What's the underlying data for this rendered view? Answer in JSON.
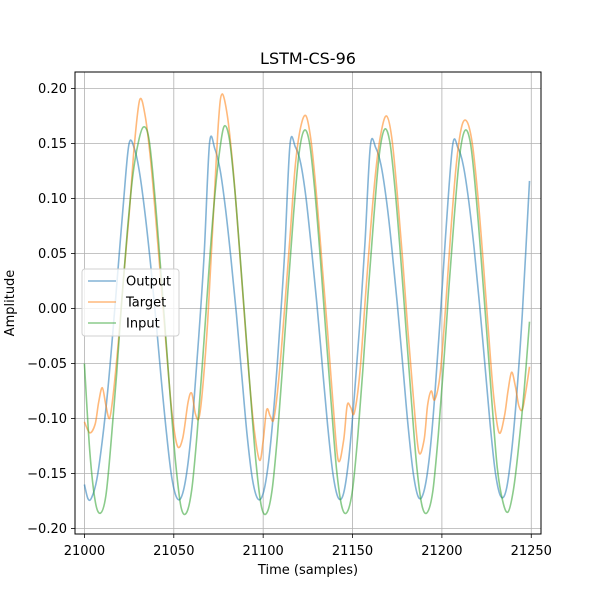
{
  "chart_data": {
    "type": "line",
    "title": "LSTM-CS-96",
    "xlabel": "Time (samples)",
    "ylabel": "Amplitude",
    "xlim": [
      21000,
      21249
    ],
    "ylim": [
      -0.205,
      0.215
    ],
    "xticks": [
      21000,
      21050,
      21100,
      21150,
      21200,
      21250
    ],
    "yticks": [
      -0.2,
      -0.15,
      -0.1,
      -0.05,
      0.0,
      0.05,
      0.1,
      0.15,
      0.2
    ],
    "ytick_labels": [
      "−0.20",
      "−0.15",
      "−0.10",
      "−0.05",
      "0.00",
      "0.05",
      "0.10",
      "0.15",
      "0.20"
    ],
    "xtick_labels": [
      "21000",
      "21050",
      "21100",
      "21150",
      "21200",
      "21250"
    ],
    "grid": true,
    "legend_position": "center-left",
    "series": [
      {
        "name": "Output",
        "color": "#1f77b4",
        "points": [
          [
            21000,
            -0.16
          ],
          [
            21002,
            -0.173
          ],
          [
            21004,
            -0.172
          ],
          [
            21007,
            -0.155
          ],
          [
            21010,
            -0.12
          ],
          [
            21013,
            -0.075
          ],
          [
            21016,
            -0.02
          ],
          [
            21019,
            0.04
          ],
          [
            21022,
            0.1
          ],
          [
            21025,
            0.15
          ],
          [
            21028,
            0.145
          ],
          [
            21031,
            0.122
          ],
          [
            21034,
            0.085
          ],
          [
            21037,
            0.04
          ],
          [
            21040,
            -0.01
          ],
          [
            21043,
            -0.065
          ],
          [
            21046,
            -0.115
          ],
          [
            21049,
            -0.155
          ],
          [
            21052,
            -0.173
          ],
          [
            21055,
            -0.168
          ],
          [
            21058,
            -0.14
          ],
          [
            21061,
            -0.09
          ],
          [
            21064,
            -0.025
          ],
          [
            21067,
            0.05
          ],
          [
            21070,
            0.15
          ],
          [
            21073,
            0.145
          ],
          [
            21076,
            0.125
          ],
          [
            21079,
            0.09
          ],
          [
            21082,
            0.045
          ],
          [
            21085,
            -0.005
          ],
          [
            21088,
            -0.06
          ],
          [
            21091,
            -0.115
          ],
          [
            21094,
            -0.155
          ],
          [
            21097,
            -0.173
          ],
          [
            21100,
            -0.168
          ],
          [
            21103,
            -0.14
          ],
          [
            21106,
            -0.09
          ],
          [
            21109,
            -0.025
          ],
          [
            21112,
            0.05
          ],
          [
            21115,
            0.149
          ],
          [
            21118,
            0.147
          ],
          [
            21121,
            0.132
          ],
          [
            21124,
            0.1
          ],
          [
            21127,
            0.055
          ],
          [
            21130,
            0.005
          ],
          [
            21133,
            -0.05
          ],
          [
            21136,
            -0.105
          ],
          [
            21139,
            -0.15
          ],
          [
            21142,
            -0.172
          ],
          [
            21145,
            -0.168
          ],
          [
            21148,
            -0.135
          ],
          [
            21151,
            -0.08
          ],
          [
            21154,
            -0.015
          ],
          [
            21157,
            0.06
          ],
          [
            21160,
            0.148
          ],
          [
            21163,
            0.146
          ],
          [
            21166,
            0.13
          ],
          [
            21169,
            0.098
          ],
          [
            21172,
            0.055
          ],
          [
            21175,
            0.005
          ],
          [
            21178,
            -0.05
          ],
          [
            21181,
            -0.105
          ],
          [
            21184,
            -0.15
          ],
          [
            21187,
            -0.172
          ],
          [
            21190,
            -0.166
          ],
          [
            21193,
            -0.135
          ],
          [
            21196,
            -0.08
          ],
          [
            21199,
            -0.01
          ],
          [
            21202,
            0.065
          ],
          [
            21206,
            0.148
          ],
          [
            21209,
            0.146
          ],
          [
            21212,
            0.13
          ],
          [
            21215,
            0.098
          ],
          [
            21218,
            0.055
          ],
          [
            21221,
            0.005
          ],
          [
            21224,
            -0.05
          ],
          [
            21227,
            -0.105
          ],
          [
            21230,
            -0.15
          ],
          [
            21233,
            -0.171
          ],
          [
            21236,
            -0.165
          ],
          [
            21239,
            -0.13
          ],
          [
            21242,
            -0.075
          ],
          [
            21245,
            -0.005
          ],
          [
            21249,
            0.116
          ]
        ]
      },
      {
        "name": "Target",
        "color": "#ff7f0e",
        "points": [
          [
            21000,
            -0.103
          ],
          [
            21003,
            -0.113
          ],
          [
            21006,
            -0.105
          ],
          [
            21008,
            -0.085
          ],
          [
            21010,
            -0.072
          ],
          [
            21012,
            -0.088
          ],
          [
            21014,
            -0.1
          ],
          [
            21016,
            -0.08
          ],
          [
            21019,
            -0.03
          ],
          [
            21022,
            0.03
          ],
          [
            21025,
            0.085
          ],
          [
            21028,
            0.15
          ],
          [
            21031,
            0.19
          ],
          [
            21034,
            0.175
          ],
          [
            21037,
            0.135
          ],
          [
            21040,
            0.08
          ],
          [
            21043,
            0.02
          ],
          [
            21046,
            -0.04
          ],
          [
            21049,
            -0.095
          ],
          [
            21052,
            -0.125
          ],
          [
            21055,
            -0.118
          ],
          [
            21058,
            -0.085
          ],
          [
            21060,
            -0.077
          ],
          [
            21062,
            -0.095
          ],
          [
            21064,
            -0.1
          ],
          [
            21066,
            -0.075
          ],
          [
            21069,
            -0.01
          ],
          [
            21072,
            0.08
          ],
          [
            21075,
            0.17
          ],
          [
            21077,
            0.195
          ],
          [
            21080,
            0.175
          ],
          [
            21083,
            0.13
          ],
          [
            21086,
            0.07
          ],
          [
            21089,
            0.005
          ],
          [
            21092,
            -0.06
          ],
          [
            21095,
            -0.11
          ],
          [
            21098,
            -0.138
          ],
          [
            21100,
            -0.12
          ],
          [
            21102,
            -0.092
          ],
          [
            21104,
            -0.098
          ],
          [
            21106,
            -0.1
          ],
          [
            21109,
            -0.06
          ],
          [
            21112,
            0.0
          ],
          [
            21115,
            0.065
          ],
          [
            21118,
            0.13
          ],
          [
            21121,
            0.165
          ],
          [
            21124,
            0.175
          ],
          [
            21127,
            0.15
          ],
          [
            21130,
            0.1
          ],
          [
            21133,
            0.04
          ],
          [
            21136,
            -0.02
          ],
          [
            21139,
            -0.085
          ],
          [
            21142,
            -0.138
          ],
          [
            21145,
            -0.12
          ],
          [
            21147,
            -0.088
          ],
          [
            21149,
            -0.09
          ],
          [
            21151,
            -0.095
          ],
          [
            21154,
            -0.06
          ],
          [
            21157,
            0.005
          ],
          [
            21160,
            0.07
          ],
          [
            21163,
            0.125
          ],
          [
            21166,
            0.16
          ],
          [
            21169,
            0.175
          ],
          [
            21172,
            0.155
          ],
          [
            21175,
            0.105
          ],
          [
            21178,
            0.045
          ],
          [
            21181,
            -0.02
          ],
          [
            21184,
            -0.08
          ],
          [
            21187,
            -0.13
          ],
          [
            21190,
            -0.12
          ],
          [
            21192,
            -0.088
          ],
          [
            21194,
            -0.075
          ],
          [
            21196,
            -0.083
          ],
          [
            21199,
            -0.06
          ],
          [
            21202,
            0.0
          ],
          [
            21205,
            0.07
          ],
          [
            21208,
            0.13
          ],
          [
            21211,
            0.165
          ],
          [
            21214,
            0.17
          ],
          [
            21217,
            0.15
          ],
          [
            21220,
            0.105
          ],
          [
            21223,
            0.045
          ],
          [
            21226,
            -0.02
          ],
          [
            21229,
            -0.08
          ],
          [
            21232,
            -0.113
          ],
          [
            21235,
            -0.098
          ],
          [
            21237,
            -0.075
          ],
          [
            21239,
            -0.058
          ],
          [
            21241,
            -0.07
          ],
          [
            21243,
            -0.088
          ],
          [
            21245,
            -0.092
          ],
          [
            21247,
            -0.075
          ],
          [
            21249,
            -0.053
          ]
        ]
      },
      {
        "name": "Input",
        "color": "#2ca02c",
        "points": [
          [
            21000,
            -0.05
          ],
          [
            21003,
            -0.13
          ],
          [
            21006,
            -0.175
          ],
          [
            21009,
            -0.186
          ],
          [
            21012,
            -0.17
          ],
          [
            21015,
            -0.12
          ],
          [
            21018,
            -0.06
          ],
          [
            21021,
            0.01
          ],
          [
            21024,
            0.07
          ],
          [
            21027,
            0.12
          ],
          [
            21030,
            0.15
          ],
          [
            21033,
            0.165
          ],
          [
            21036,
            0.155
          ],
          [
            21039,
            0.11
          ],
          [
            21042,
            0.05
          ],
          [
            21045,
            -0.015
          ],
          [
            21048,
            -0.08
          ],
          [
            21051,
            -0.14
          ],
          [
            21054,
            -0.18
          ],
          [
            21057,
            -0.186
          ],
          [
            21060,
            -0.165
          ],
          [
            21063,
            -0.115
          ],
          [
            21066,
            -0.05
          ],
          [
            21069,
            0.02
          ],
          [
            21072,
            0.085
          ],
          [
            21075,
            0.135
          ],
          [
            21078,
            0.165
          ],
          [
            21081,
            0.155
          ],
          [
            21084,
            0.11
          ],
          [
            21087,
            0.05
          ],
          [
            21090,
            -0.015
          ],
          [
            21093,
            -0.08
          ],
          [
            21096,
            -0.14
          ],
          [
            21099,
            -0.18
          ],
          [
            21102,
            -0.186
          ],
          [
            21105,
            -0.165
          ],
          [
            21108,
            -0.115
          ],
          [
            21111,
            -0.05
          ],
          [
            21114,
            0.02
          ],
          [
            21117,
            0.085
          ],
          [
            21120,
            0.14
          ],
          [
            21123,
            0.162
          ],
          [
            21126,
            0.15
          ],
          [
            21129,
            0.105
          ],
          [
            21132,
            0.045
          ],
          [
            21135,
            -0.02
          ],
          [
            21138,
            -0.085
          ],
          [
            21141,
            -0.145
          ],
          [
            21144,
            -0.18
          ],
          [
            21147,
            -0.185
          ],
          [
            21150,
            -0.165
          ],
          [
            21153,
            -0.115
          ],
          [
            21156,
            -0.05
          ],
          [
            21159,
            0.02
          ],
          [
            21162,
            0.085
          ],
          [
            21165,
            0.14
          ],
          [
            21168,
            0.163
          ],
          [
            21171,
            0.15
          ],
          [
            21174,
            0.105
          ],
          [
            21177,
            0.045
          ],
          [
            21180,
            -0.02
          ],
          [
            21183,
            -0.085
          ],
          [
            21186,
            -0.145
          ],
          [
            21189,
            -0.18
          ],
          [
            21192,
            -0.185
          ],
          [
            21195,
            -0.165
          ],
          [
            21198,
            -0.115
          ],
          [
            21201,
            -0.05
          ],
          [
            21204,
            0.02
          ],
          [
            21207,
            0.085
          ],
          [
            21210,
            0.14
          ],
          [
            21213,
            0.162
          ],
          [
            21216,
            0.15
          ],
          [
            21219,
            0.105
          ],
          [
            21222,
            0.045
          ],
          [
            21225,
            -0.02
          ],
          [
            21228,
            -0.085
          ],
          [
            21231,
            -0.145
          ],
          [
            21234,
            -0.175
          ],
          [
            21237,
            -0.185
          ],
          [
            21240,
            -0.165
          ],
          [
            21243,
            -0.125
          ],
          [
            21246,
            -0.075
          ],
          [
            21249,
            -0.012
          ]
        ]
      }
    ]
  }
}
